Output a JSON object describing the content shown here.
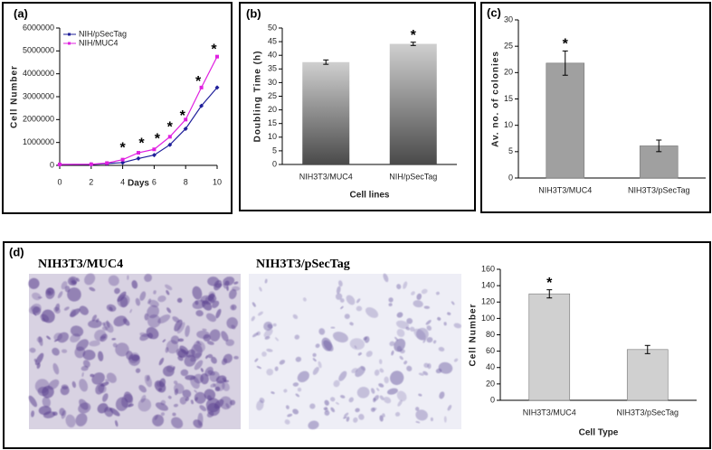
{
  "images": [
    {
      "label": "NIH3T3/MUC4"
    },
    {
      "label": "NIH3T3/pSecTag"
    }
  ],
  "chart_data": [
    {
      "type": "line",
      "label": "(a)",
      "xlabel": "Days",
      "ylabel": "Cell Number",
      "x": [
        0,
        2,
        3,
        4,
        5,
        6,
        7,
        8,
        9,
        10
      ],
      "series": [
        {
          "name": "NIH/pSecTag",
          "color": "#1f1f9a",
          "marker": "diamond",
          "values": [
            40000,
            40000,
            80000,
            120000,
            300000,
            450000,
            900000,
            1600000,
            2600000,
            3400000
          ]
        },
        {
          "name": "NIH/MUC4",
          "color": "#e020e0",
          "marker": "square",
          "values": [
            40000,
            50000,
            100000,
            250000,
            550000,
            700000,
            1250000,
            2000000,
            3400000,
            4750000
          ]
        }
      ],
      "xlim": [
        0,
        10
      ],
      "xticks": [
        0,
        2,
        4,
        6,
        8,
        10
      ],
      "ylim": [
        0,
        6000000
      ],
      "yticks": [
        0,
        1000000,
        2000000,
        3000000,
        4000000,
        5000000,
        6000000
      ],
      "legend": "upper left",
      "annotations": [
        {
          "text": "*",
          "x": 4,
          "y": 900000
        },
        {
          "text": "*",
          "x": 5.2,
          "y": 1100000
        },
        {
          "text": "*",
          "x": 6.2,
          "y": 1300000
        },
        {
          "text": "*",
          "x": 7,
          "y": 1800000
        },
        {
          "text": "*",
          "x": 7.8,
          "y": 2300000
        },
        {
          "text": "*",
          "x": 8.8,
          "y": 3800000
        },
        {
          "text": "*",
          "x": 9.8,
          "y": 5200000
        }
      ]
    },
    {
      "type": "bar",
      "label": "(b)",
      "xlabel": "Cell lines",
      "ylabel": "Doubling Time (h)",
      "categories": [
        "NIH3T3/MUC4",
        "NIH/pSecTag"
      ],
      "values": [
        37.5,
        44.2
      ],
      "errors": [
        0.8,
        0.6
      ],
      "color": "gradient",
      "ylim": [
        0,
        50
      ],
      "yticks": [
        0,
        5,
        10,
        15,
        20,
        25,
        30,
        35,
        40,
        45,
        50
      ],
      "annotations": [
        {
          "text": "*",
          "x": "NIH/pSecTag"
        }
      ]
    },
    {
      "type": "bar",
      "label": "(c)",
      "ylabel": "Av. no. of colonies",
      "categories": [
        "NIH3T3/MUC4",
        "NIH3T3/pSecTag"
      ],
      "values": [
        21.8,
        6.1
      ],
      "errors": [
        2.3,
        1.1
      ],
      "color": "#a0a0a0",
      "ylim": [
        0,
        30
      ],
      "yticks": [
        0,
        5,
        10,
        15,
        20,
        25,
        30
      ],
      "annotations": [
        {
          "text": "*",
          "x": "NIH3T3/MUC4"
        }
      ]
    },
    {
      "type": "bar",
      "label": "(d)",
      "xlabel": "Cell Type",
      "ylabel": "Cell Number",
      "categories": [
        "NIH3T3/MUC4",
        "NIH3T3/pSecTag"
      ],
      "values": [
        130,
        62
      ],
      "errors": [
        5,
        5
      ],
      "color": "#d0d0d0",
      "ylim": [
        0,
        160
      ],
      "yticks": [
        0,
        20,
        40,
        60,
        80,
        100,
        120,
        140,
        160
      ],
      "annotations": [
        {
          "text": "*",
          "x": "NIH3T3/MUC4"
        }
      ]
    }
  ]
}
